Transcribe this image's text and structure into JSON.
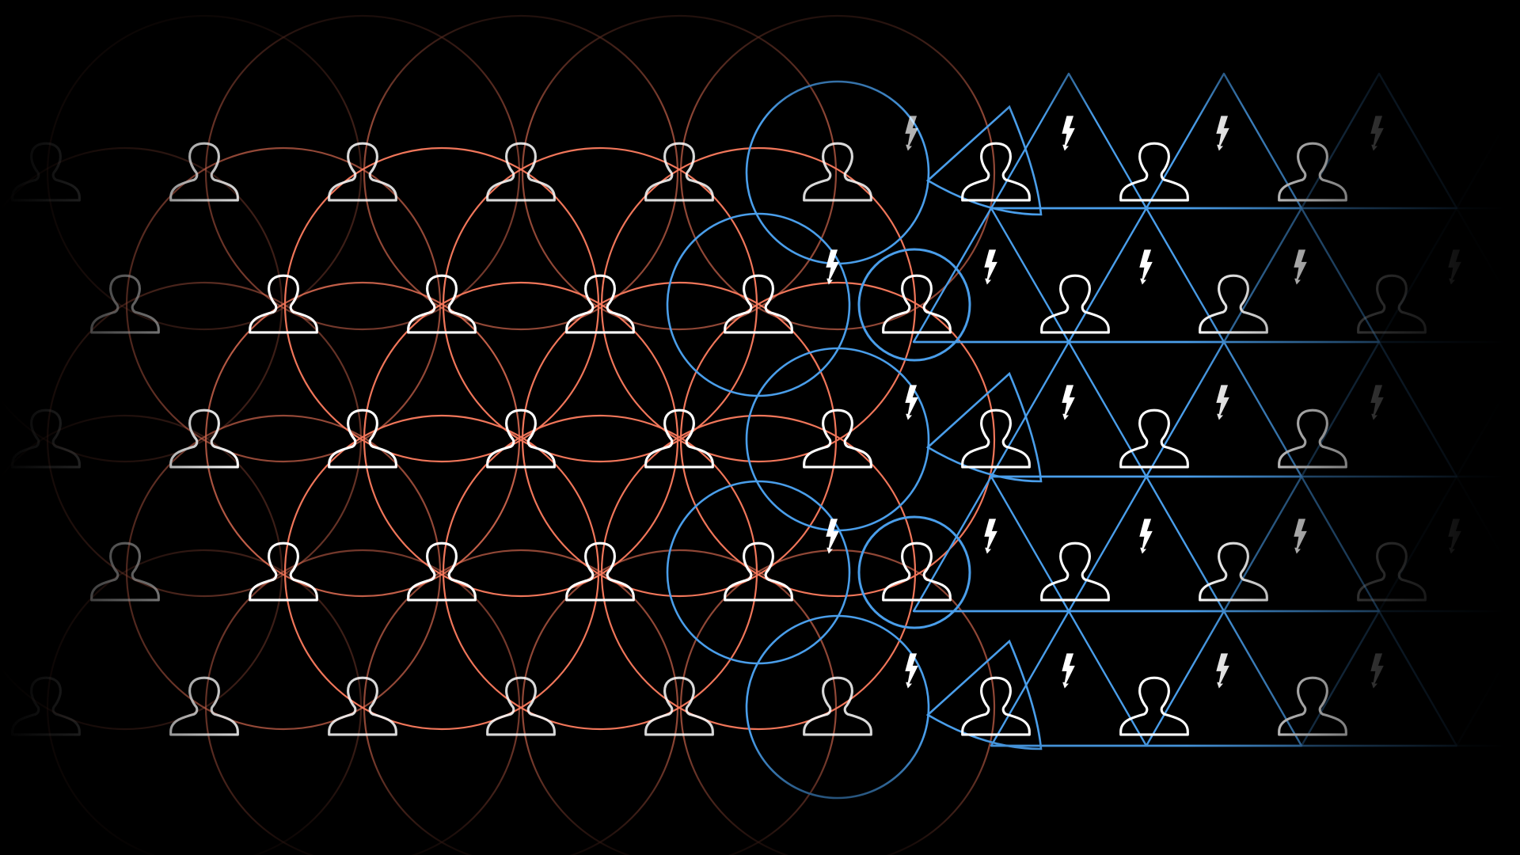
{
  "colors": {
    "background": "#000000",
    "orange_network": "#f0765a",
    "blue_network": "#4a9eea",
    "person_icon": "#ffffff",
    "bolt_icon": "#ffffff"
  },
  "icons": {
    "person": "person-silhouette-icon",
    "bolt": "lightning-bolt-icon"
  }
}
